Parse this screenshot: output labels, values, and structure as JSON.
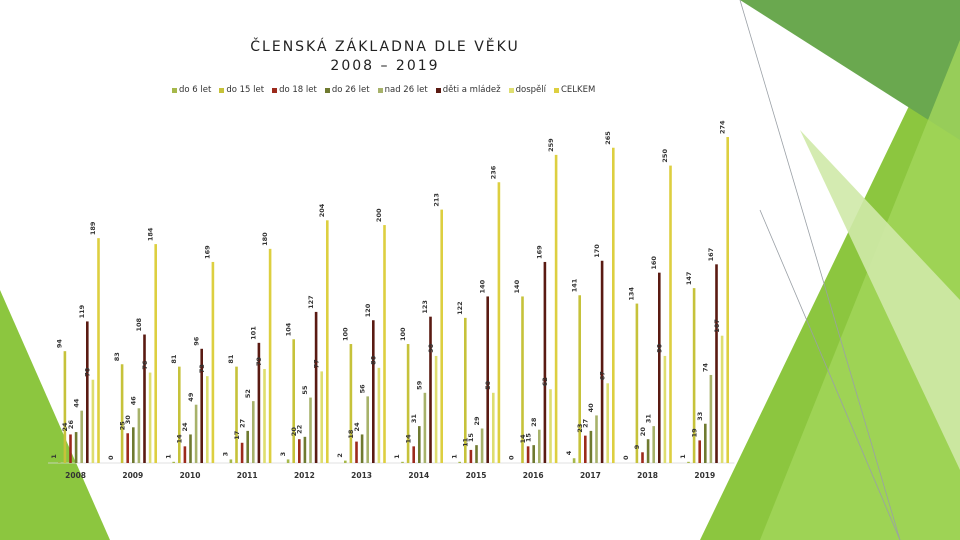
{
  "title": "ČLENSKÁ ZÁKLADNA DLE VĚKU",
  "subtitle": "2008 – 2019",
  "colors": {
    "do 6 let": "#a6b84a",
    "do 15 let": "#c6c23a",
    "do 18 let": "#9c2a1c",
    "do 26 let": "#6f7a30",
    "nad 26 let": "#a7b26a",
    "děti a mládež": "#5a1a12",
    "dospělí": "#dede70",
    "CELKEM": "#ddcf40"
  },
  "chart_data": {
    "type": "bar",
    "title": "ČLENSKÁ ZÁKLADNA DLE VĚKU",
    "subtitle": "2008 – 2019",
    "categories": [
      "2008",
      "2009",
      "2010",
      "2011",
      "2012",
      "2013",
      "2014",
      "2015",
      "2016",
      "2017",
      "2018",
      "2019"
    ],
    "series": [
      {
        "name": "do 6 let",
        "values": [
          1,
          0,
          1,
          3,
          3,
          2,
          1,
          1,
          0,
          4,
          0,
          1
        ]
      },
      {
        "name": "do 15 let",
        "values": [
          94,
          83,
          81,
          81,
          104,
          100,
          100,
          122,
          140,
          141,
          134,
          147
        ]
      },
      {
        "name": "do 18 let",
        "values": [
          24,
          25,
          14,
          17,
          20,
          18,
          14,
          11,
          14,
          23,
          9,
          19
        ]
      },
      {
        "name": "do 26 let",
        "values": [
          26,
          30,
          24,
          27,
          22,
          24,
          31,
          15,
          15,
          27,
          20,
          33
        ]
      },
      {
        "name": "nad 26 let",
        "values": [
          44,
          46,
          49,
          52,
          55,
          56,
          59,
          29,
          28,
          40,
          31,
          74
        ]
      },
      {
        "name": "děti a mládež",
        "values": [
          119,
          108,
          96,
          101,
          127,
          120,
          123,
          140,
          169,
          170,
          160,
          167
        ]
      },
      {
        "name": "dospělí",
        "values": [
          70,
          76,
          73,
          79,
          77,
          80,
          90,
          59,
          62,
          67,
          90,
          107
        ]
      },
      {
        "name": "CELKEM",
        "values": [
          189,
          184,
          169,
          180,
          204,
          200,
          213,
          236,
          259,
          265,
          250,
          274
        ]
      }
    ],
    "ylim": [
      0,
      290
    ],
    "legend": "top",
    "grid": false
  }
}
